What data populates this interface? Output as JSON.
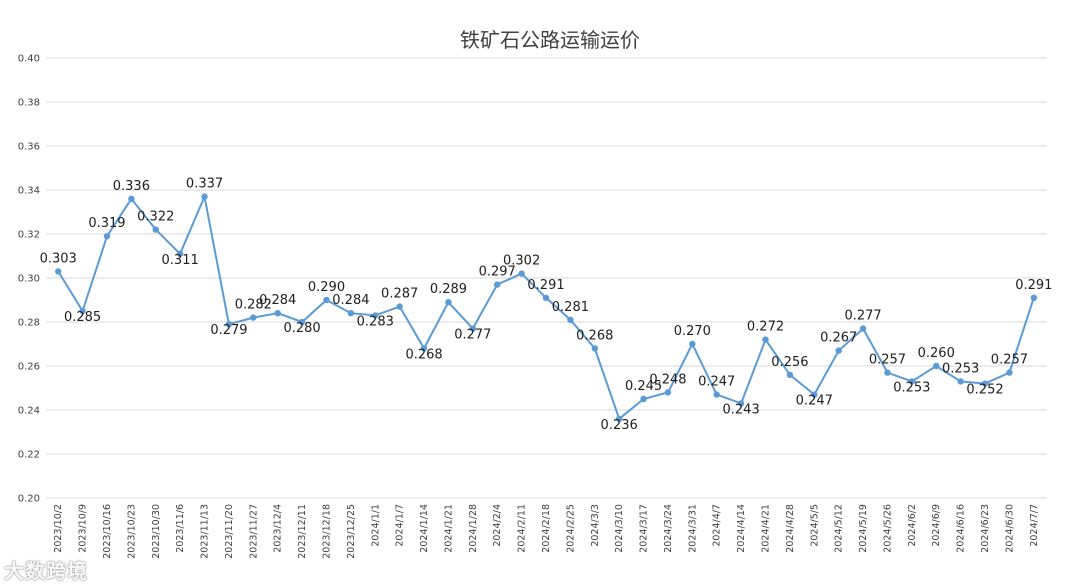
{
  "chart_data": {
    "type": "line",
    "title": "铁矿石公路运输运价",
    "ylim": [
      0.2,
      0.4
    ],
    "yticks": [
      "0.20",
      "0.22",
      "0.24",
      "0.26",
      "0.28",
      "0.30",
      "0.32",
      "0.34",
      "0.36",
      "0.38",
      "0.40"
    ],
    "grid": true,
    "series_color": "#5b9bd5",
    "categories": [
      "2023/10/2",
      "2023/10/9",
      "2023/10/16",
      "2023/10/23",
      "2023/10/30",
      "2023/11/6",
      "2023/11/13",
      "2023/11/20",
      "2023/11/27",
      "2023/12/4",
      "2023/12/11",
      "2023/12/18",
      "2023/12/25",
      "2024/1/1",
      "2024/1/7",
      "2024/1/14",
      "2024/1/21",
      "2024/1/28",
      "2024/2/4",
      "2024/2/11",
      "2024/2/18",
      "2024/2/25",
      "2024/3/3",
      "2024/3/10",
      "2024/3/17",
      "2024/3/24",
      "2024/3/31",
      "2024/4/7",
      "2024/4/14",
      "2024/4/21",
      "2024/4/28",
      "2024/5/5",
      "2024/5/12",
      "2024/5/19",
      "2024/5/26",
      "2024/6/2",
      "2024/6/9",
      "2024/6/16",
      "2024/6/23",
      "2024/6/30",
      "2024/7/7"
    ],
    "values": [
      0.303,
      0.285,
      0.319,
      0.336,
      0.322,
      0.311,
      0.337,
      0.279,
      0.282,
      0.284,
      0.28,
      0.29,
      0.284,
      0.283,
      0.287,
      0.268,
      0.289,
      0.277,
      0.297,
      0.302,
      0.291,
      0.281,
      0.268,
      0.236,
      0.245,
      0.248,
      0.27,
      0.247,
      0.243,
      0.272,
      0.256,
      0.247,
      0.267,
      0.277,
      0.257,
      0.253,
      0.26,
      0.253,
      0.252,
      0.257,
      0.291
    ],
    "labels": [
      "0.303",
      "0.285",
      "0.319",
      "0.336",
      "0.322",
      "0.311",
      "0.337",
      "0.279",
      "0.282",
      "0.284",
      "0.280",
      "0.290",
      "0.284",
      "0.283",
      "0.287",
      "0.268",
      "0.289",
      "0.277",
      "0.297",
      "0.302",
      "0.291",
      "0.281",
      "0.268",
      "0.236",
      "0.245",
      "0.248",
      "0.270",
      "0.247",
      "0.243",
      "0.272",
      "0.256",
      "0.247",
      "0.267",
      "0.277",
      "0.257",
      "0.253",
      "0.260",
      "0.253",
      "0.252",
      "0.257",
      "0.291"
    ]
  },
  "watermark": "大数跨境"
}
